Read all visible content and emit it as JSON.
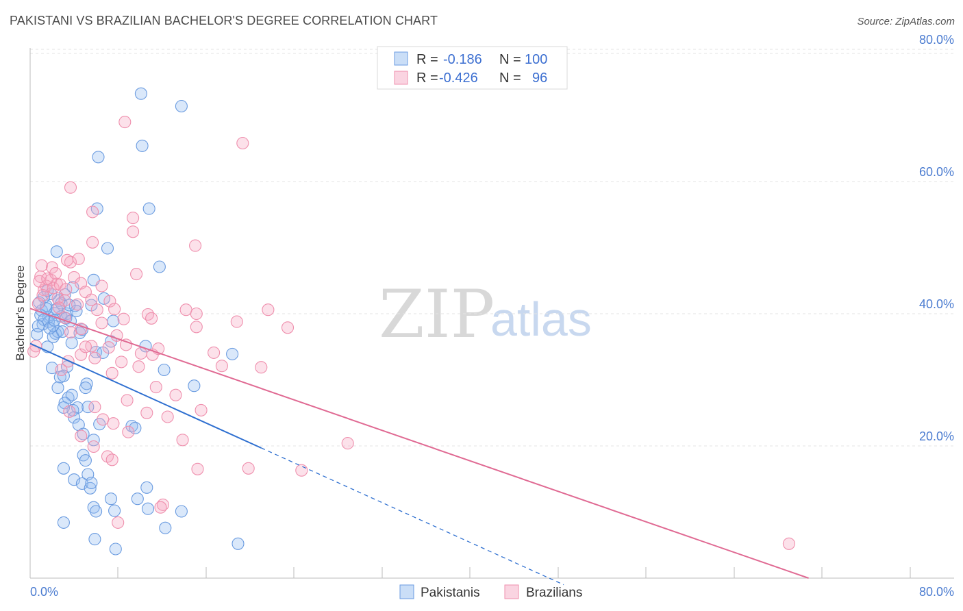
{
  "title": "PAKISTANI VS BRAZILIAN BACHELOR'S DEGREE CORRELATION CHART",
  "source": "Source: ZipAtlas.com",
  "watermark": {
    "part1": "ZIP",
    "part2": "atlas"
  },
  "chart_data": {
    "type": "scatter",
    "ylabel": "Bachelor's Degree",
    "xlim": [
      0,
      80
    ],
    "ylim": [
      0,
      80
    ],
    "x_ticks": [
      "0.0%",
      "80.0%"
    ],
    "y_ticks": [
      {
        "value": 20,
        "label": "20.0%"
      },
      {
        "value": 40,
        "label": "40.0%"
      },
      {
        "value": 60,
        "label": "60.0%"
      },
      {
        "value": 80,
        "label": "80.0%"
      }
    ],
    "grid": true,
    "legend_position": "top-center",
    "series": [
      {
        "name": "Pakistanis",
        "color": "#6a9be0",
        "fill": "rgba(150,190,240,0.35)",
        "line_color": "#2e6fd0",
        "R": "-0.186",
        "N": "100",
        "trend": {
          "x0": 0,
          "y0": 35.5,
          "x1": 20.0,
          "y1": 19.7,
          "dash_to_x": 46.2
        },
        "points": [
          [
            1.0,
            40.5
          ],
          [
            1.4,
            41.2
          ],
          [
            1.6,
            39.5
          ],
          [
            2.1,
            40.1
          ],
          [
            1.2,
            42.5
          ],
          [
            2.5,
            42.0
          ],
          [
            1.8,
            43.0
          ],
          [
            3.2,
            40.0
          ],
          [
            0.9,
            39.8
          ],
          [
            2.7,
            39.6
          ],
          [
            3.9,
            41.2
          ],
          [
            2.2,
            37.0
          ],
          [
            4.3,
            37.1
          ],
          [
            5.3,
            41.3
          ],
          [
            6.4,
            42.3
          ],
          [
            5.5,
            45.1
          ],
          [
            3.7,
            44.0
          ],
          [
            6.7,
            49.9
          ],
          [
            2.3,
            49.4
          ],
          [
            11.2,
            47.1
          ],
          [
            10.3,
            55.9
          ],
          [
            5.8,
            55.9
          ],
          [
            5.9,
            63.7
          ],
          [
            9.7,
            65.4
          ],
          [
            13.1,
            71.4
          ],
          [
            9.6,
            73.3
          ],
          [
            7.2,
            38.9
          ],
          [
            5.7,
            34.2
          ],
          [
            6.3,
            34.1
          ],
          [
            7.0,
            35.8
          ],
          [
            2.4,
            37.3
          ],
          [
            2.0,
            36.5
          ],
          [
            1.5,
            35.0
          ],
          [
            3.6,
            35.6
          ],
          [
            10.0,
            35.1
          ],
          [
            11.6,
            31.5
          ],
          [
            14.2,
            29.1
          ],
          [
            17.5,
            33.9
          ],
          [
            1.9,
            31.8
          ],
          [
            3.2,
            32.0
          ],
          [
            2.6,
            30.4
          ],
          [
            2.9,
            30.6
          ],
          [
            4.9,
            29.4
          ],
          [
            4.8,
            28.8
          ],
          [
            2.4,
            28.8
          ],
          [
            3.3,
            27.3
          ],
          [
            3.6,
            27.7
          ],
          [
            3.0,
            26.5
          ],
          [
            4.1,
            25.8
          ],
          [
            3.7,
            25.4
          ],
          [
            2.9,
            25.8
          ],
          [
            5.0,
            25.9
          ],
          [
            3.8,
            24.3
          ],
          [
            4.2,
            23.2
          ],
          [
            6.0,
            23.3
          ],
          [
            8.8,
            23.0
          ],
          [
            9.1,
            22.7
          ],
          [
            4.6,
            21.8
          ],
          [
            5.5,
            20.9
          ],
          [
            4.6,
            18.6
          ],
          [
            4.8,
            17.8
          ],
          [
            2.9,
            16.6
          ],
          [
            5.0,
            15.7
          ],
          [
            3.8,
            14.9
          ],
          [
            4.5,
            14.3
          ],
          [
            5.2,
            13.6
          ],
          [
            5.3,
            14.4
          ],
          [
            7.0,
            12.0
          ],
          [
            9.3,
            12.0
          ],
          [
            10.1,
            13.7
          ],
          [
            5.5,
            10.7
          ],
          [
            5.7,
            10.1
          ],
          [
            7.3,
            10.2
          ],
          [
            10.2,
            10.5
          ],
          [
            13.1,
            10.1
          ],
          [
            11.7,
            7.6
          ],
          [
            2.9,
            8.4
          ],
          [
            5.6,
            5.9
          ],
          [
            7.4,
            4.4
          ],
          [
            18.0,
            5.2
          ],
          [
            1.1,
            38.4
          ],
          [
            1.6,
            38.8
          ],
          [
            2.0,
            38.2
          ],
          [
            3.1,
            39.3
          ],
          [
            4.0,
            40.4
          ],
          [
            2.7,
            41.6
          ],
          [
            1.4,
            40.8
          ],
          [
            0.8,
            41.7
          ],
          [
            1.2,
            39.1
          ],
          [
            2.3,
            40.7
          ],
          [
            3.5,
            38.9
          ],
          [
            1.7,
            37.8
          ],
          [
            0.6,
            36.9
          ],
          [
            3.4,
            41.3
          ],
          [
            2.8,
            37.3
          ],
          [
            0.7,
            38.1
          ],
          [
            4.5,
            37.6
          ],
          [
            2.1,
            39.0
          ],
          [
            3.0,
            42.9
          ],
          [
            1.5,
            43.5
          ]
        ]
      },
      {
        "name": "Brazilians",
        "color": "#ef8fad",
        "fill": "rgba(245,170,195,0.35)",
        "line_color": "#e06a93",
        "R": "-0.426",
        "N": "96",
        "trend": {
          "x0": 0,
          "y0": 40.8,
          "x1": 67.4,
          "y1": 0
        },
        "points": [
          [
            8.2,
            69.0
          ],
          [
            18.4,
            65.8
          ],
          [
            3.5,
            59.1
          ],
          [
            5.4,
            55.4
          ],
          [
            8.9,
            54.5
          ],
          [
            8.9,
            52.4
          ],
          [
            14.3,
            50.3
          ],
          [
            5.4,
            50.8
          ],
          [
            3.5,
            47.8
          ],
          [
            3.2,
            48.1
          ],
          [
            4.2,
            48.3
          ],
          [
            1.0,
            47.3
          ],
          [
            1.9,
            47.0
          ],
          [
            9.2,
            46.0
          ],
          [
            3.8,
            45.5
          ],
          [
            0.9,
            45.6
          ],
          [
            1.8,
            45.1
          ],
          [
            2.3,
            44.5
          ],
          [
            4.4,
            44.6
          ],
          [
            6.2,
            44.2
          ],
          [
            1.2,
            43.6
          ],
          [
            4.8,
            43.3
          ],
          [
            2.4,
            42.3
          ],
          [
            3.0,
            42.0
          ],
          [
            5.3,
            42.1
          ],
          [
            6.9,
            41.9
          ],
          [
            4.1,
            41.4
          ],
          [
            7.3,
            40.7
          ],
          [
            13.5,
            40.6
          ],
          [
            14.4,
            40.0
          ],
          [
            20.6,
            40.6
          ],
          [
            10.2,
            39.9
          ],
          [
            8.1,
            39.2
          ],
          [
            10.5,
            39.3
          ],
          [
            6.2,
            38.6
          ],
          [
            17.9,
            38.8
          ],
          [
            14.4,
            38.0
          ],
          [
            22.3,
            37.9
          ],
          [
            4.4,
            37.7
          ],
          [
            3.5,
            37.2
          ],
          [
            7.5,
            36.7
          ],
          [
            5.3,
            35.1
          ],
          [
            6.8,
            34.9
          ],
          [
            9.6,
            34.0
          ],
          [
            10.6,
            33.8
          ],
          [
            15.9,
            34.1
          ],
          [
            11.1,
            34.7
          ],
          [
            4.4,
            33.8
          ],
          [
            5.6,
            33.3
          ],
          [
            3.3,
            32.8
          ],
          [
            7.9,
            32.7
          ],
          [
            9.4,
            32.0
          ],
          [
            16.6,
            32.1
          ],
          [
            20.0,
            31.9
          ],
          [
            7.1,
            31.0
          ],
          [
            2.7,
            31.5
          ],
          [
            4.8,
            35.0
          ],
          [
            8.3,
            35.3
          ],
          [
            10.9,
            28.9
          ],
          [
            12.6,
            27.7
          ],
          [
            8.4,
            26.9
          ],
          [
            5.6,
            25.9
          ],
          [
            3.4,
            25.2
          ],
          [
            10.1,
            25.0
          ],
          [
            11.9,
            24.4
          ],
          [
            14.8,
            25.4
          ],
          [
            6.3,
            24.0
          ],
          [
            7.2,
            23.4
          ],
          [
            8.5,
            22.1
          ],
          [
            4.4,
            21.5
          ],
          [
            5.5,
            19.9
          ],
          [
            13.2,
            20.9
          ],
          [
            6.7,
            18.4
          ],
          [
            7.1,
            17.9
          ],
          [
            14.5,
            16.5
          ],
          [
            18.9,
            16.6
          ],
          [
            23.5,
            16.3
          ],
          [
            27.5,
            20.4
          ],
          [
            11.5,
            11.1
          ],
          [
            11.3,
            10.7
          ],
          [
            7.6,
            8.4
          ],
          [
            65.7,
            5.2
          ],
          [
            1.4,
            44.2
          ],
          [
            2.0,
            43.9
          ],
          [
            0.8,
            44.9
          ],
          [
            2.6,
            44.4
          ],
          [
            1.5,
            45.3
          ],
          [
            3.1,
            43.7
          ],
          [
            2.2,
            46.1
          ],
          [
            1.1,
            42.8
          ],
          [
            0.5,
            35.1
          ],
          [
            0.3,
            34.3
          ],
          [
            3.0,
            39.4
          ],
          [
            5.8,
            40.6
          ],
          [
            2.5,
            40.9
          ],
          [
            0.7,
            41.5
          ]
        ]
      }
    ]
  }
}
